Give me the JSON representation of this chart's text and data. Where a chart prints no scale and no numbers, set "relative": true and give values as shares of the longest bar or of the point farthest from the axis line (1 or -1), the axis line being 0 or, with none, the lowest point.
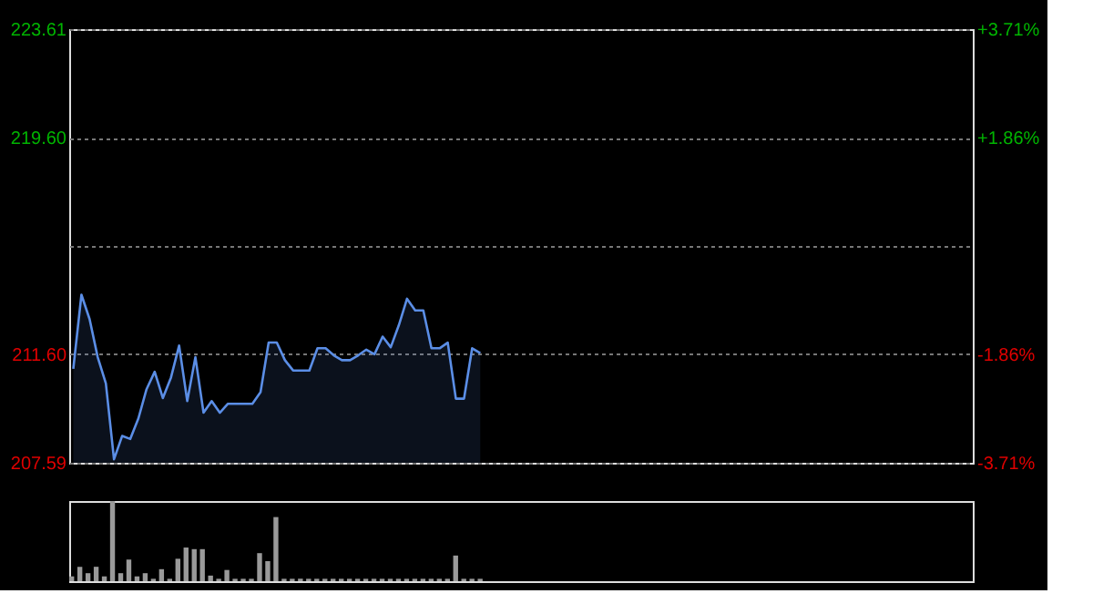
{
  "chart_data": [
    {
      "type": "area",
      "categories": [
        null,
        null,
        null,
        null,
        null,
        null,
        null,
        null,
        null,
        null,
        null,
        null,
        null,
        null,
        null,
        null,
        null,
        null,
        null,
        null,
        null,
        null,
        null,
        null,
        null,
        null,
        null,
        null,
        null,
        null,
        null,
        null,
        null,
        null,
        null,
        null,
        null,
        null,
        null,
        null,
        null,
        null,
        null,
        null,
        null,
        null,
        null,
        null,
        null,
        null,
        null,
        null,
        null,
        null,
        null,
        null,
        null,
        null,
        null,
        null,
        null,
        null,
        null,
        null,
        null,
        null,
        null,
        null,
        null,
        null,
        null,
        null,
        null,
        null,
        null,
        null,
        null,
        null,
        null,
        null,
        null,
        null,
        null,
        null,
        null,
        null,
        null,
        null,
        null,
        null,
        null,
        null,
        null,
        null,
        null,
        null,
        null,
        null,
        null,
        null,
        null,
        null,
        null,
        null,
        null,
        null,
        null,
        null,
        null,
        null,
        null
      ],
      "series": [
        {
          "color": "#5b8ee6",
          "values": [
            211.06,
            213.8,
            212.9,
            211.49,
            210.52,
            207.72,
            208.58,
            208.47,
            209.23,
            210.31,
            210.95,
            209.98,
            210.74,
            211.92,
            209.87,
            211.49,
            209.44,
            209.87,
            209.44,
            209.77,
            209.77,
            209.77,
            209.77,
            210.2,
            212.03,
            212.03,
            211.38,
            211.0,
            211.0,
            211.0,
            211.82,
            211.82,
            211.56,
            211.38,
            211.38,
            211.56,
            211.77,
            211.6,
            212.25,
            211.86,
            212.68,
            213.65,
            213.22,
            213.22,
            211.82,
            211.82,
            212.03,
            209.96,
            209.96,
            211.82,
            211.64,
            null,
            null,
            null,
            null,
            null,
            null,
            null,
            null,
            null,
            null,
            null,
            null,
            null,
            null,
            null,
            null,
            null,
            null,
            null,
            null,
            null,
            null,
            null,
            null,
            null,
            null,
            null,
            null,
            null,
            null,
            null,
            null,
            null,
            null,
            null,
            null,
            null,
            null,
            null,
            null,
            null,
            null,
            null,
            null,
            null,
            null,
            null,
            null,
            null,
            null,
            null,
            null,
            null,
            null,
            null,
            null,
            null,
            null,
            null,
            null
          ]
        }
      ],
      "ylim": [
        207.59,
        223.61
      ],
      "yticks": [
        207.59,
        {
          "value": 211.6,
          "label": "211.60"
        },
        {
          "value": 215.6,
          "label": null
        },
        {
          "value": 219.6,
          "label": "219.60"
        },
        223.61
      ],
      "y2lim": [
        -3.71,
        3.71
      ],
      "y2ticks": [
        {
          "value": -3.71,
          "label": "-3.71%"
        },
        {
          "value": -1.86,
          "label": "-1.86%"
        },
        {
          "value": 0,
          "label": null
        },
        {
          "value": 1.86,
          "label": "+1.86%"
        },
        {
          "value": 3.71,
          "label": "+3.71%"
        }
      ],
      "grid": true,
      "tick_labels": "y"
    },
    {
      "type": "bar",
      "relative": true,
      "color": "#9a9a9a",
      "categories": [
        null,
        null,
        null,
        null,
        null,
        null,
        null,
        null,
        null,
        null,
        null,
        null,
        null,
        null,
        null,
        null,
        null,
        null,
        null,
        null,
        null,
        null,
        null,
        null,
        null,
        null,
        null,
        null,
        null,
        null,
        null,
        null,
        null,
        null,
        null,
        null,
        null,
        null,
        null,
        null,
        null,
        null,
        null,
        null,
        null,
        null,
        null,
        null,
        null,
        null,
        null,
        null,
        null,
        null,
        null,
        null,
        null,
        null,
        null,
        null,
        null,
        null,
        null,
        null,
        null,
        null,
        null,
        null,
        null,
        null,
        null,
        null,
        null,
        null,
        null,
        null,
        null,
        null,
        null,
        null,
        null,
        null,
        null,
        null,
        null,
        null,
        null,
        null,
        null,
        null,
        null,
        null,
        null,
        null,
        null,
        null,
        null,
        null,
        null,
        null,
        null,
        null,
        null,
        null,
        null,
        null,
        null,
        null,
        null,
        null,
        null
      ],
      "values": [
        0.06,
        0.18,
        0.1,
        0.18,
        0.06,
        1,
        0.1,
        0.27,
        0.06,
        0.1,
        0.03,
        0.15,
        0.03,
        0.28,
        0.42,
        0.4,
        0.4,
        0.07,
        0.03,
        0.14,
        0.03,
        0.03,
        0.03,
        0.35,
        0.25,
        0.8,
        0.03,
        0.03,
        0.03,
        0.03,
        0.03,
        0.03,
        0.03,
        0.03,
        0.03,
        0.03,
        0.03,
        0.03,
        0.03,
        0.03,
        0.03,
        0.03,
        0.03,
        0.03,
        0.03,
        0.03,
        0.03,
        0.32,
        0.03,
        0.03,
        0.03,
        null,
        null,
        null,
        null,
        null,
        null,
        null,
        null,
        null,
        null,
        null,
        null,
        null,
        null,
        null,
        null,
        null,
        null,
        null,
        null,
        null,
        null,
        null,
        null,
        null,
        null,
        null,
        null,
        null,
        null,
        null,
        null,
        null,
        null,
        null,
        null,
        null,
        null,
        null,
        null,
        null,
        null,
        null,
        null,
        null,
        null,
        null,
        null,
        null,
        null,
        null,
        null,
        null,
        null,
        null,
        null,
        null,
        null,
        null,
        null
      ],
      "tick_labels": false
    }
  ]
}
